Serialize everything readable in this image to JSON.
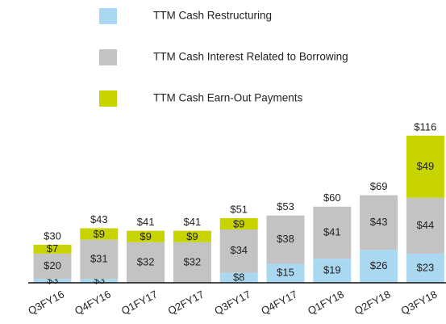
{
  "chart_data": {
    "type": "stacked_bar",
    "categories": [
      "Q3FY16",
      "Q4FY16",
      "Q1FY17",
      "Q2FY17",
      "Q3FY17",
      "Q4FY17",
      "Q1FY18",
      "Q2FY18",
      "Q3FY18"
    ],
    "series": [
      {
        "name": "TTM Cash Restructuring",
        "color": "#a9d8f0",
        "values": [
          3,
          3,
          null,
          null,
          8,
          15,
          19,
          26,
          23
        ],
        "value_labels": [
          "$3",
          "$3",
          null,
          null,
          "$8",
          "$15",
          "$19",
          "$26",
          "$23"
        ]
      },
      {
        "name": "TTM Cash Interest Related to Borrowing",
        "color": "#c3c3c3",
        "values": [
          20,
          31,
          32,
          32,
          34,
          38,
          41,
          43,
          44
        ],
        "value_labels": [
          "$20",
          "$31",
          "$32",
          "$32",
          "$34",
          "$38",
          "$41",
          "$43",
          "$44"
        ]
      },
      {
        "name": "TTM Cash Earn-Out Payments",
        "color": "#c8d400",
        "values": [
          7,
          9,
          9,
          9,
          9,
          null,
          null,
          null,
          49
        ],
        "value_labels": [
          "$7",
          "$9",
          "$9",
          "$9",
          "$9",
          null,
          null,
          null,
          "$49"
        ]
      }
    ],
    "totals": [
      30,
      43,
      41,
      41,
      51,
      53,
      60,
      69,
      116
    ],
    "total_labels": [
      "$30",
      "$43",
      "$41",
      "$41",
      "$51",
      "$53",
      "$60",
      "$69",
      "$116"
    ]
  }
}
